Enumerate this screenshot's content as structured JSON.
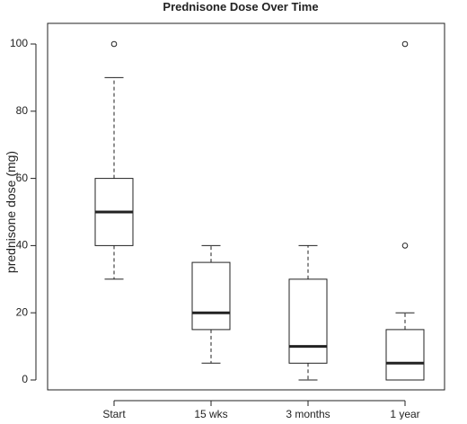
{
  "chart_data": {
    "type": "box",
    "title": "Prednisone Dose Over Time",
    "xlabel": "",
    "ylabel": "prednisone dose (mg)",
    "ylim": [
      0,
      100
    ],
    "yticks": [
      0,
      20,
      40,
      60,
      80,
      100
    ],
    "grid": false,
    "categories": [
      "Start",
      "15 wks",
      "3 months",
      "1 year"
    ],
    "boxes": [
      {
        "category": "Start",
        "whisker_low": 30,
        "q1": 40,
        "median": 50,
        "q3": 60,
        "whisker_high": 90,
        "outliers": [
          100
        ]
      },
      {
        "category": "15 wks",
        "whisker_low": 5,
        "q1": 15,
        "median": 20,
        "q3": 35,
        "whisker_high": 40,
        "outliers": []
      },
      {
        "category": "3 months",
        "whisker_low": 0,
        "q1": 5,
        "median": 10,
        "q3": 30,
        "whisker_high": 40,
        "outliers": []
      },
      {
        "category": "1 year",
        "whisker_low": 0,
        "q1": 0,
        "median": 5,
        "q3": 15,
        "whisker_high": 20,
        "outliers": [
          40,
          100
        ]
      }
    ],
    "colors": {
      "line": "#222222",
      "box_fill": "#ffffff"
    }
  }
}
